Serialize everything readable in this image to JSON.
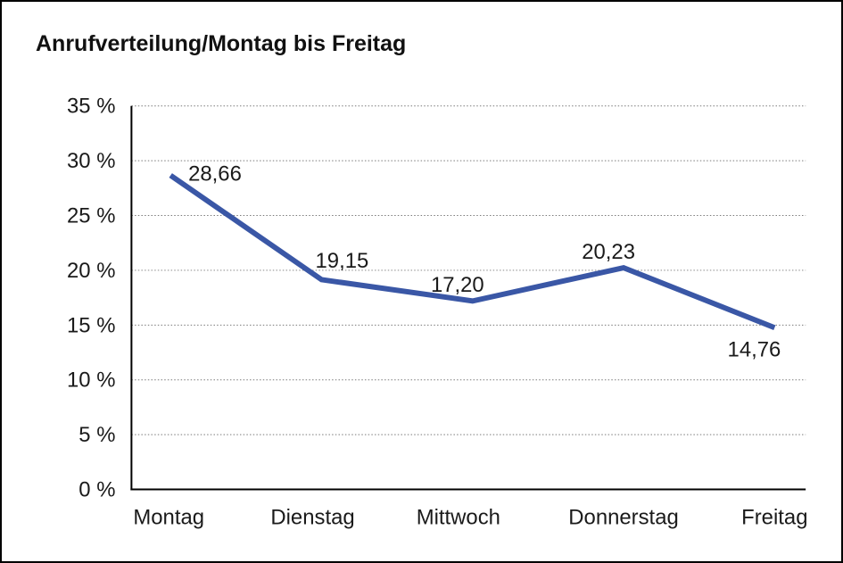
{
  "chart_data": {
    "type": "line",
    "title": "Anrufverteilung/Montag bis Freitag",
    "categories": [
      "Montag",
      "Dienstag",
      "Mittwoch",
      "Donnerstag",
      "Freitag"
    ],
    "values": [
      28.66,
      19.15,
      17.2,
      20.23,
      14.76
    ],
    "value_labels": [
      "28,66",
      "19,15",
      "17,20",
      "20,23",
      "14,76"
    ],
    "yticks": [
      {
        "value": 0,
        "label": "0 %"
      },
      {
        "value": 5,
        "label": "5 %"
      },
      {
        "value": 10,
        "label": "10 %"
      },
      {
        "value": 15,
        "label": "15 %"
      },
      {
        "value": 20,
        "label": "20 %"
      },
      {
        "value": 25,
        "label": "25 %"
      },
      {
        "value": 30,
        "label": "30 %"
      },
      {
        "value": 35,
        "label": "35 %"
      }
    ],
    "ylim": [
      0,
      35
    ],
    "xlabel": "",
    "ylabel": "",
    "grid": "horizontal-dotted",
    "legend": "none",
    "series_color": "#3a57a6",
    "axis_color": "#000000",
    "gridline_color": "#7a7a7a",
    "line_width": 6
  }
}
